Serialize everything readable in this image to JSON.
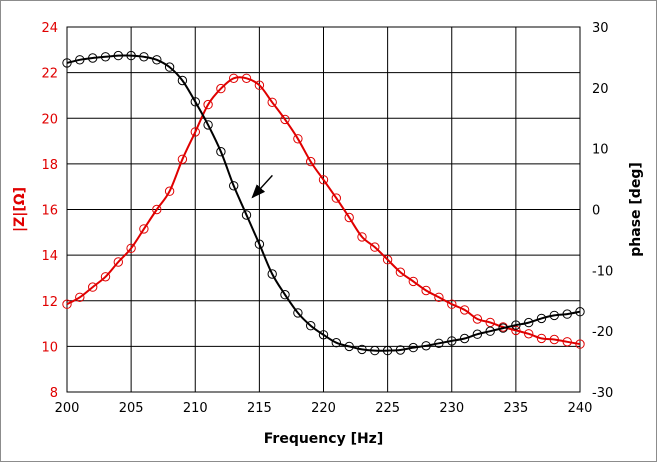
{
  "chart_data": {
    "type": "scatter",
    "xlabel": "Frequency [Hz]",
    "ylabel_left": "|Z|[Ω]",
    "ylabel_right": "phase [deg]",
    "xlim": [
      200,
      240
    ],
    "ylim_left": [
      8,
      24
    ],
    "ylim_right": [
      -30,
      30
    ],
    "x_ticks": [
      200,
      205,
      210,
      215,
      220,
      225,
      230,
      235,
      240
    ],
    "y_left_ticks": [
      8,
      10,
      12,
      14,
      16,
      18,
      20,
      22,
      24
    ],
    "y_right_ticks": [
      -30,
      -20,
      -10,
      0,
      10,
      20,
      30
    ],
    "grid": true,
    "colors": {
      "impedance": "#e00000",
      "phase": "#000000",
      "left_axis_text": "#e00000",
      "right_axis_text": "#000000"
    },
    "series": [
      {
        "axis": "left",
        "color": "#e00000",
        "x": [
          200,
          201,
          202,
          203,
          204,
          205,
          206,
          207,
          208,
          209,
          210,
          211,
          212,
          213,
          214,
          215,
          216,
          217,
          218,
          219,
          220,
          221,
          222,
          223,
          224,
          225,
          226,
          227,
          228,
          229,
          230,
          231,
          232,
          233,
          234,
          235,
          236,
          237,
          238,
          239,
          240
        ],
        "values": [
          11.85,
          12.15,
          12.6,
          13.05,
          13.7,
          14.3,
          15.15,
          16.0,
          16.8,
          18.2,
          19.4,
          20.6,
          21.3,
          21.75,
          21.75,
          21.45,
          20.7,
          19.95,
          19.1,
          18.1,
          17.3,
          16.5,
          15.65,
          14.8,
          14.35,
          13.8,
          13.25,
          12.85,
          12.45,
          12.15,
          11.85,
          11.6,
          11.2,
          11.05,
          10.85,
          10.7,
          10.55,
          10.35,
          10.3,
          10.2,
          10.1
        ]
      },
      {
        "axis": "right",
        "color": "#000000",
        "x": [
          200,
          201,
          202,
          203,
          204,
          205,
          206,
          207,
          208,
          209,
          210,
          211,
          212,
          213,
          214,
          215,
          216,
          217,
          218,
          219,
          220,
          221,
          222,
          223,
          224,
          225,
          226,
          227,
          228,
          229,
          230,
          231,
          232,
          233,
          234,
          235,
          236,
          237,
          238,
          239,
          240
        ],
        "values": [
          24.1,
          24.6,
          24.9,
          25.1,
          25.3,
          25.3,
          25.1,
          24.6,
          23.4,
          21.2,
          17.7,
          13.9,
          9.5,
          3.9,
          -0.9,
          -5.7,
          -10.6,
          -14.0,
          -17.0,
          -19.1,
          -20.6,
          -21.9,
          -22.5,
          -23.0,
          -23.2,
          -23.2,
          -23.1,
          -22.7,
          -22.4,
          -22.0,
          -21.6,
          -21.2,
          -20.5,
          -20.0,
          -19.5,
          -19.0,
          -18.6,
          -17.9,
          -17.4,
          -17.2,
          -16.8
        ]
      }
    ],
    "annotations": [
      {
        "type": "arrow",
        "points_to": [
          214.3,
          16.4
        ]
      }
    ]
  }
}
